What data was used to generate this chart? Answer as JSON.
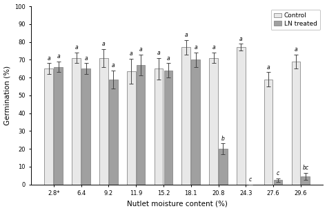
{
  "categories": [
    "2.8*",
    "6.4",
    "9.2",
    "11.9",
    "15.2",
    "18.1",
    "20.8",
    "24.3",
    "27.6",
    "29.6"
  ],
  "control_values": [
    65,
    71,
    71,
    63.5,
    65,
    77,
    71,
    77,
    59,
    69
  ],
  "ln_values": [
    66,
    65,
    59,
    67,
    64,
    70,
    20,
    0,
    2.5,
    4.5
  ],
  "control_errors": [
    3,
    3,
    5,
    7,
    6,
    4,
    3,
    2,
    4,
    4
  ],
  "ln_errors": [
    3,
    3,
    5,
    6,
    4,
    4,
    3,
    0,
    1,
    2
  ],
  "control_labels": [
    "a",
    "a",
    "a",
    "a",
    "a",
    "a",
    "a",
    "a",
    "a",
    "a"
  ],
  "ln_labels": [
    "a",
    "a",
    "a",
    "a",
    "a",
    "a",
    "b",
    "c",
    "c",
    "bc"
  ],
  "control_color": "#e8e8e8",
  "ln_color": "#a0a0a0",
  "bar_edge_color": "#888888",
  "ylabel": "Germination (%)",
  "xlabel": "Nutlet moisture content (%)",
  "ylim": [
    0,
    100
  ],
  "yticks": [
    0,
    10,
    20,
    30,
    40,
    50,
    60,
    70,
    80,
    90,
    100
  ],
  "legend_labels": [
    "Control",
    "LN treated"
  ],
  "title": ""
}
